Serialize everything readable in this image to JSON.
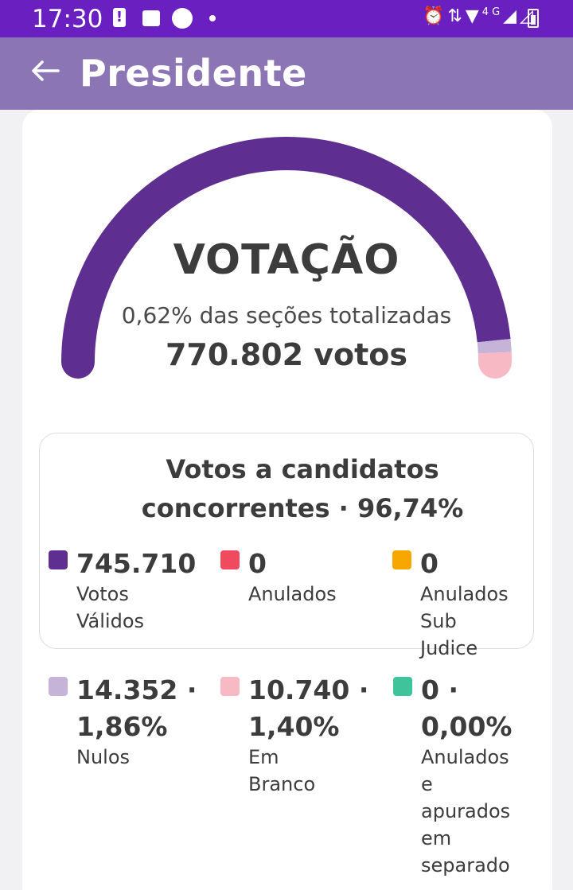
{
  "status_bar": {
    "time": "17:30",
    "icons": [
      "alert-icon",
      "image-icon",
      "circle-icon",
      "dot-icon",
      "alarm-icon",
      "data-arrows-icon",
      "wifi-icon",
      "4g-icon",
      "signal-icon",
      "signal-x-icon",
      "battery-icon"
    ],
    "network": "4G"
  },
  "app_bar": {
    "back_icon": "arrow-left-icon",
    "title": "Presidente"
  },
  "gauge": {
    "title": "VOTAÇÃO",
    "subtitle": "0,62% das seções totalizadas",
    "votes": "770.802 votos",
    "segments": [
      {
        "name": "Votos Válidos",
        "fraction": 0.9674,
        "color": "#5e2e90"
      },
      {
        "name": "Nulos",
        "fraction": 0.0186,
        "color": "#c6b3d8"
      },
      {
        "name": "Em Branco",
        "fraction": 0.014,
        "color": "#f7b9c3"
      }
    ]
  },
  "valid_section": {
    "title_line1": "Votos a candidatos",
    "title_line2": "concorrentes · 96,74%",
    "items": [
      {
        "value": "745.710",
        "label1": "Votos",
        "label2": "Válidos",
        "color": "#5e2e90"
      },
      {
        "value": "0",
        "label1": "Anulados",
        "label2": "",
        "color": "#f04a5f"
      },
      {
        "value": "0",
        "label1": "Anulados",
        "label2": "Sub Judice",
        "color": "#f7a700"
      }
    ]
  },
  "other_section": {
    "items": [
      {
        "value1": "14.352 ·",
        "value2": "1,86%",
        "labels": [
          "Nulos"
        ],
        "color": "#c6b3d8"
      },
      {
        "value1": "10.740 ·",
        "value2": "1,40%",
        "labels": [
          "Em",
          "Branco"
        ],
        "color": "#f7b9c3"
      },
      {
        "value1": "0 ·",
        "value2": "0,00%",
        "labels": [
          "Anulados",
          "e",
          "apurados",
          "em",
          "separado"
        ],
        "color": "#3fc39a"
      }
    ]
  }
}
